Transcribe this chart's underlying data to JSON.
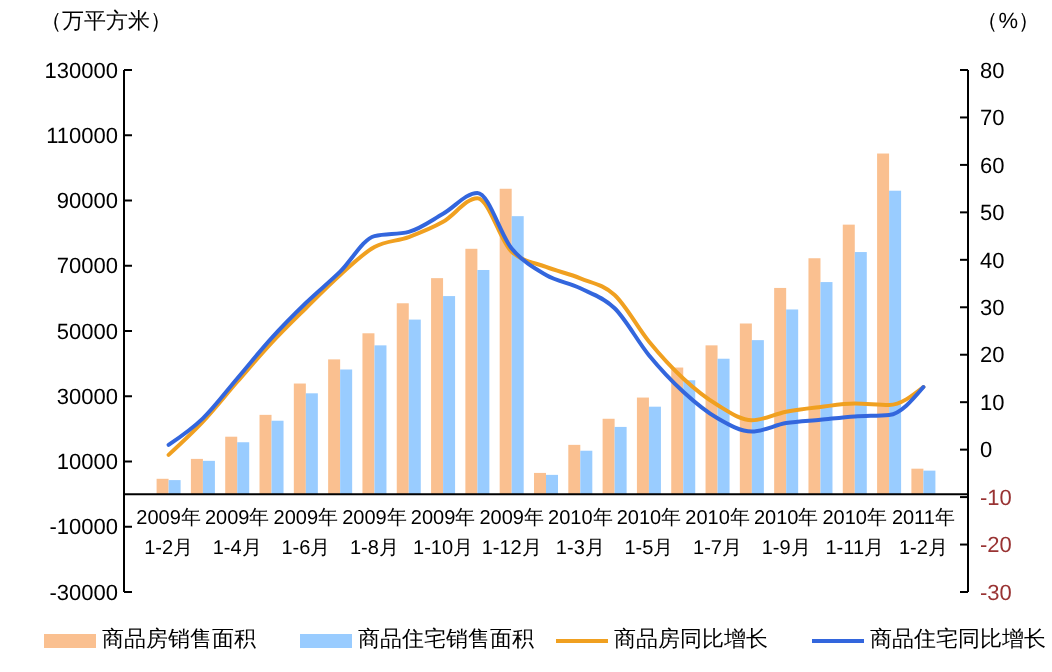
{
  "chart_data": {
    "type": "bar",
    "ylabel": "（万平方米）",
    "y2label": "（%）",
    "categories": [
      "2009年\n1-2月",
      null,
      "2009年\n1-4月",
      null,
      "2009年\n1-6月",
      null,
      "2009年\n1-8月",
      null,
      "2009年\n1-10月",
      null,
      "2009年\n1-12月",
      null,
      "2010年\n1-3月",
      null,
      "2010年\n1-5月",
      null,
      "2010年\n1-7月",
      null,
      "2010年\n1-9月",
      null,
      "2010年\n1-11月",
      null,
      "2011年\n1-2月"
    ],
    "ylim": [
      -30000,
      130000
    ],
    "yticks": [
      -30000,
      -10000,
      10000,
      30000,
      50000,
      70000,
      90000,
      110000,
      130000
    ],
    "y2lim": [
      -30,
      80
    ],
    "y2ticks": [
      -30,
      -20,
      -10,
      0,
      10,
      20,
      30,
      40,
      50,
      60,
      70,
      80
    ],
    "legend": "bottom",
    "grid": false,
    "series": [
      {
        "name": "商品房销售面积",
        "color": "#fac090",
        "values": [
          4700,
          10800,
          17600,
          24300,
          33900,
          41300,
          49300,
          58500,
          66200,
          75200,
          93600,
          6500,
          15100,
          23100,
          29600,
          38800,
          45600,
          52300,
          63200,
          72300,
          82600,
          104400,
          7800
        ]
      },
      {
        "name": "商品住宅销售面积",
        "color": "#99ccff",
        "values": [
          4300,
          10200,
          15900,
          22500,
          30900,
          38200,
          45600,
          53500,
          60700,
          68700,
          85200,
          5900,
          13300,
          20600,
          26800,
          34900,
          41500,
          47200,
          56600,
          65000,
          74200,
          93000,
          7200
        ]
      },
      {
        "name": "商品房同比增长",
        "type": "line",
        "axis": "y2",
        "color": "#f0a020",
        "values": [
          -1.1,
          5.9,
          14.3,
          22.5,
          29.8,
          36.8,
          42.7,
          44.8,
          48,
          53,
          41.7,
          38.5,
          36.1,
          32.6,
          22.8,
          15,
          9.4,
          6.2,
          8,
          9,
          9.7,
          9.4,
          13.2
        ]
      },
      {
        "name": "商品住宅同比增长",
        "type": "line",
        "axis": "y2",
        "color": "#3366dd",
        "values": [
          1,
          6.6,
          15,
          23.5,
          30.9,
          37.5,
          45,
          45.9,
          49.7,
          54.1,
          42.4,
          36.8,
          34,
          29.8,
          19.9,
          12.2,
          6.6,
          3.8,
          5.6,
          6.3,
          7,
          7.3,
          13.2
        ]
      }
    ]
  }
}
